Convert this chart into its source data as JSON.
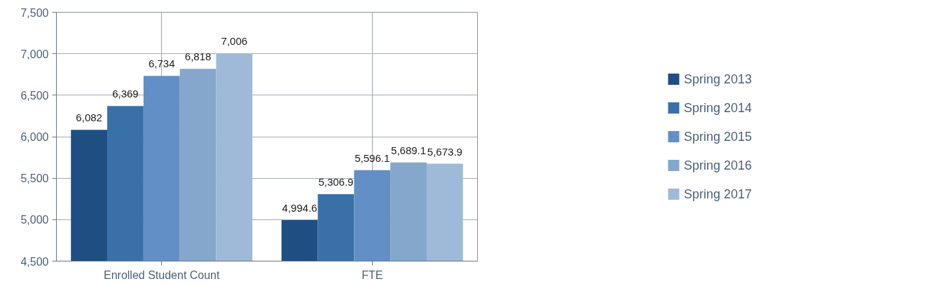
{
  "chart_data": {
    "type": "bar",
    "categories": [
      "Enrolled Student Count",
      "FTE"
    ],
    "series": [
      {
        "name": "Spring 2013",
        "color": "#1f4e82",
        "values": [
          6082,
          4994.6
        ],
        "value_labels": [
          "6,082",
          "4,994.6"
        ]
      },
      {
        "name": "Spring 2014",
        "color": "#3a70a8",
        "values": [
          6369,
          5306.9
        ],
        "value_labels": [
          "6,369",
          "5,306.9"
        ]
      },
      {
        "name": "Spring 2015",
        "color": "#6290c6",
        "values": [
          6734,
          5596.1
        ],
        "value_labels": [
          "6,734",
          "5,596.1"
        ]
      },
      {
        "name": "Spring 2016",
        "color": "#84a7cb",
        "values": [
          6818,
          5689.1
        ],
        "value_labels": [
          "6,818",
          "5,689.1"
        ]
      },
      {
        "name": "Spring 2017",
        "color": "#9fbad8",
        "values": [
          7006,
          5673.9
        ],
        "value_labels": [
          "7,006",
          "5,673.9"
        ]
      }
    ],
    "ylim": [
      4500,
      7500
    ],
    "yticks": [
      {
        "value": 4500,
        "label": "4,500"
      },
      {
        "value": 5000,
        "label": "5,000"
      },
      {
        "value": 5500,
        "label": "5,500"
      },
      {
        "value": 6000,
        "label": "6,000"
      },
      {
        "value": 6500,
        "label": "6,500"
      },
      {
        "value": 7000,
        "label": "7,000"
      },
      {
        "value": 7500,
        "label": "7,500"
      }
    ],
    "grid": true,
    "legend": "right"
  }
}
